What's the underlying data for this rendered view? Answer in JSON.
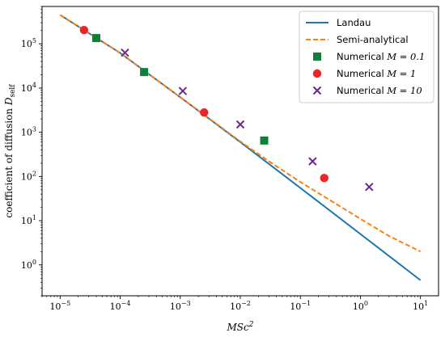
{
  "chart_data": {
    "type": "line",
    "xscale": "log",
    "yscale": "log",
    "xlim": [
      5e-06,
      20
    ],
    "ylim": [
      0.2,
      700000
    ],
    "xlabel": {
      "main": "MSc",
      "sup": "2"
    },
    "ylabel": {
      "main": "coefficient of diffusion ",
      "var": "D",
      "sub": "self"
    },
    "x_ticks": [
      {
        "value": 1e-05,
        "base": "10",
        "exp": "−5"
      },
      {
        "value": 0.0001,
        "base": "10",
        "exp": "−4"
      },
      {
        "value": 0.001,
        "base": "10",
        "exp": "−3"
      },
      {
        "value": 0.01,
        "base": "10",
        "exp": "−2"
      },
      {
        "value": 0.1,
        "base": "10",
        "exp": "−1"
      },
      {
        "value": 1,
        "base": "10",
        "exp": "0"
      },
      {
        "value": 10,
        "base": "10",
        "exp": "1"
      }
    ],
    "y_ticks": [
      {
        "value": 1,
        "base": "10",
        "exp": "0"
      },
      {
        "value": 10,
        "base": "10",
        "exp": "1"
      },
      {
        "value": 100,
        "base": "10",
        "exp": "2"
      },
      {
        "value": 1000,
        "base": "10",
        "exp": "3"
      },
      {
        "value": 10000,
        "base": "10",
        "exp": "4"
      },
      {
        "value": 100000,
        "base": "10",
        "exp": "5"
      }
    ],
    "grid": false,
    "legend_position": "top-right",
    "series": [
      {
        "name": "Landau",
        "kind": "line",
        "style": "solid",
        "color": "#1f77b4",
        "x": [
          1e-05,
          0.0001,
          0.001,
          0.01,
          0.1,
          1,
          10
        ],
        "y": [
          450000,
          62000,
          6200,
          600,
          55,
          5,
          0.45
        ]
      },
      {
        "name": "Semi-analytical",
        "kind": "line",
        "style": "dashed",
        "color": "#ff7f0e",
        "x": [
          1e-05,
          0.0001,
          0.001,
          0.01,
          0.03,
          0.1,
          0.3,
          1,
          3,
          10
        ],
        "y": [
          450000,
          62000,
          6200,
          620,
          220,
          75,
          30,
          11,
          4.5,
          2
        ]
      },
      {
        "name": "Numerical ",
        "math": "M = 0.1",
        "kind": "scatter",
        "marker": "square",
        "color": "#117f3a",
        "x": [
          4e-05,
          0.00025,
          0.025
        ],
        "y": [
          135000,
          23000,
          650
        ]
      },
      {
        "name": "Numerical ",
        "math": "M = 1",
        "kind": "scatter",
        "marker": "circle",
        "color": "#e8262c",
        "x": [
          2.5e-05,
          0.0025,
          0.25
        ],
        "y": [
          205000,
          2800,
          92
        ]
      },
      {
        "name": "Numerical ",
        "math": "M = 10",
        "kind": "scatter",
        "marker": "x",
        "color": "#6a2d82",
        "x": [
          0.00012,
          0.0011,
          0.01,
          0.16,
          1.4
        ],
        "y": [
          63000,
          8600,
          1500,
          220,
          58
        ]
      }
    ]
  }
}
